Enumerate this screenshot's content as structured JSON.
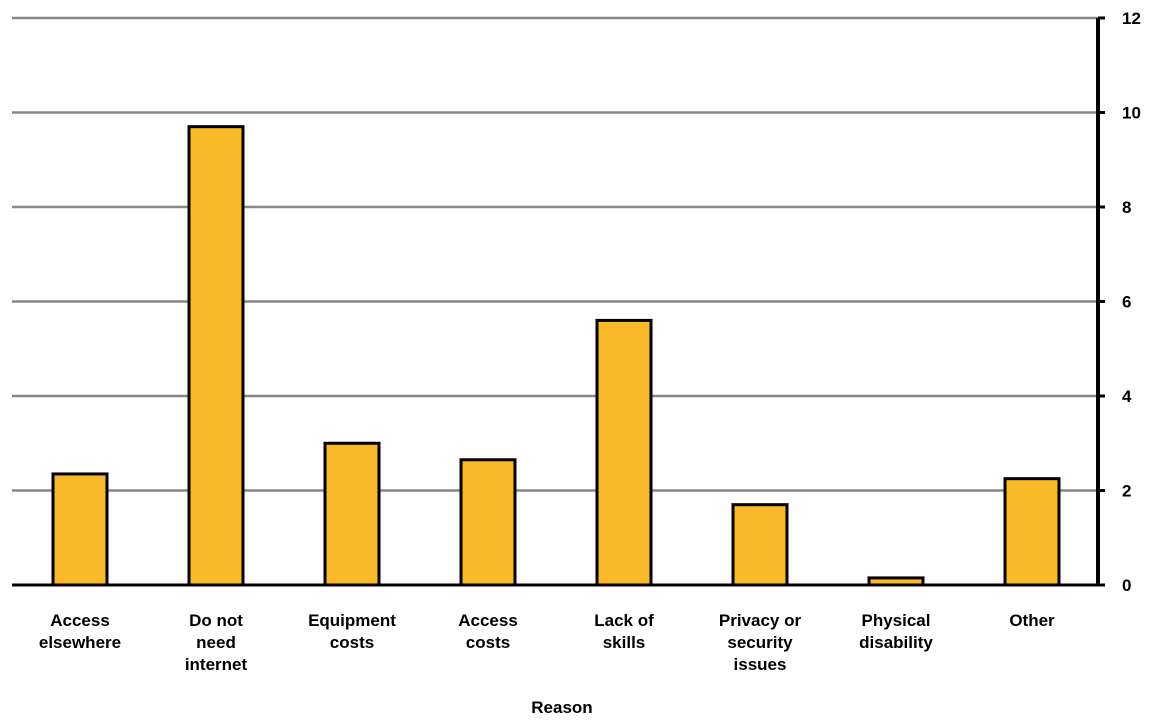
{
  "chart_data": {
    "type": "bar",
    "categories": [
      [
        "Access",
        "elsewhere"
      ],
      [
        "Do not",
        "need",
        "internet"
      ],
      [
        "Equipment",
        "costs"
      ],
      [
        "Access",
        "costs"
      ],
      [
        "Lack of",
        "skills"
      ],
      [
        "Privacy or",
        "security",
        "issues"
      ],
      [
        "Physical",
        "disability"
      ],
      [
        "Other"
      ]
    ],
    "values": [
      2.35,
      9.7,
      3.0,
      2.65,
      5.6,
      1.7,
      0.15,
      2.25
    ],
    "xlabel": "Reason",
    "ylabel": "",
    "ylim": [
      0,
      12
    ],
    "yticks": [
      0,
      2,
      4,
      6,
      8,
      10,
      12
    ],
    "y_axis_side": "right",
    "grid": true,
    "colors": {
      "bar_fill": "#F9B928",
      "bar_stroke": "#000000",
      "grid": "#888888",
      "axis": "#000000"
    }
  }
}
